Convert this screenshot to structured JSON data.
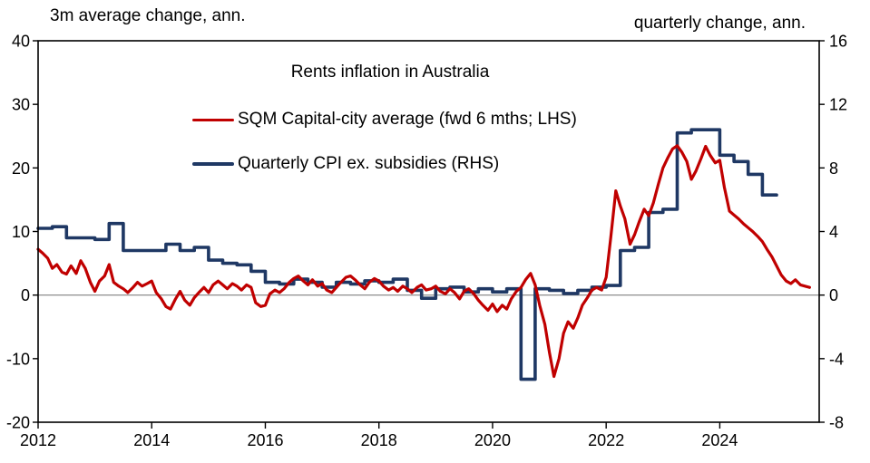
{
  "chart_data": {
    "type": "line",
    "title": "Rents inflation in Australia",
    "left_axis": {
      "title": "3m average change, ann.",
      "min": -20,
      "max": 40,
      "ticks": [
        40,
        30,
        20,
        10,
        0,
        -10,
        -20
      ]
    },
    "right_axis": {
      "title": "quarterly change, ann.",
      "min": -8,
      "max": 16,
      "ticks": [
        16,
        12,
        8,
        4,
        0,
        -4,
        -8
      ]
    },
    "x_axis": {
      "min": 2012,
      "max": 2025.75,
      "tick_positions": [
        2012,
        2014,
        2016,
        2018,
        2020,
        2022,
        2024
      ],
      "tick_labels": [
        "2012",
        "2014",
        "2016",
        "2018",
        "2020",
        "2022",
        "2024"
      ]
    },
    "zero_line": true,
    "grid": false,
    "legend_position": "top-center",
    "series": [
      {
        "name": "SQM Capital-city average (fwd 6 mths; LHS)",
        "axis": "left",
        "color": "#c00000",
        "width": 3.2,
        "style": "linear",
        "points": [
          [
            2012.0,
            7.2
          ],
          [
            2012.08,
            6.6
          ],
          [
            2012.17,
            5.8
          ],
          [
            2012.25,
            4.2
          ],
          [
            2012.33,
            4.8
          ],
          [
            2012.42,
            3.6
          ],
          [
            2012.5,
            3.3
          ],
          [
            2012.58,
            4.6
          ],
          [
            2012.67,
            3.4
          ],
          [
            2012.75,
            5.4
          ],
          [
            2012.83,
            4.2
          ],
          [
            2012.92,
            2.0
          ],
          [
            2013.0,
            0.6
          ],
          [
            2013.08,
            2.2
          ],
          [
            2013.17,
            3.0
          ],
          [
            2013.25,
            4.8
          ],
          [
            2013.33,
            2.0
          ],
          [
            2013.42,
            1.4
          ],
          [
            2013.5,
            1.0
          ],
          [
            2013.58,
            0.4
          ],
          [
            2013.67,
            1.2
          ],
          [
            2013.75,
            2.0
          ],
          [
            2013.83,
            1.4
          ],
          [
            2013.92,
            1.8
          ],
          [
            2014.0,
            2.2
          ],
          [
            2014.08,
            0.4
          ],
          [
            2014.17,
            -0.6
          ],
          [
            2014.25,
            -1.8
          ],
          [
            2014.33,
            -2.2
          ],
          [
            2014.42,
            -0.6
          ],
          [
            2014.5,
            0.6
          ],
          [
            2014.58,
            -0.8
          ],
          [
            2014.67,
            -1.6
          ],
          [
            2014.75,
            -0.4
          ],
          [
            2014.83,
            0.4
          ],
          [
            2014.92,
            1.2
          ],
          [
            2015.0,
            0.4
          ],
          [
            2015.08,
            1.6
          ],
          [
            2015.17,
            2.2
          ],
          [
            2015.25,
            1.6
          ],
          [
            2015.33,
            1.0
          ],
          [
            2015.42,
            1.8
          ],
          [
            2015.5,
            1.4
          ],
          [
            2015.58,
            0.8
          ],
          [
            2015.67,
            1.6
          ],
          [
            2015.75,
            1.2
          ],
          [
            2015.83,
            -1.2
          ],
          [
            2015.92,
            -1.8
          ],
          [
            2016.0,
            -1.6
          ],
          [
            2016.08,
            0.2
          ],
          [
            2016.17,
            0.8
          ],
          [
            2016.25,
            0.4
          ],
          [
            2016.33,
            1.0
          ],
          [
            2016.42,
            2.0
          ],
          [
            2016.5,
            2.6
          ],
          [
            2016.58,
            3.0
          ],
          [
            2016.67,
            2.2
          ],
          [
            2016.75,
            1.6
          ],
          [
            2016.83,
            2.4
          ],
          [
            2016.92,
            1.4
          ],
          [
            2017.0,
            1.8
          ],
          [
            2017.08,
            0.8
          ],
          [
            2017.17,
            0.4
          ],
          [
            2017.25,
            1.2
          ],
          [
            2017.33,
            2.0
          ],
          [
            2017.42,
            2.8
          ],
          [
            2017.5,
            3.0
          ],
          [
            2017.58,
            2.4
          ],
          [
            2017.67,
            1.6
          ],
          [
            2017.75,
            1.0
          ],
          [
            2017.83,
            2.0
          ],
          [
            2017.92,
            2.6
          ],
          [
            2018.0,
            2.2
          ],
          [
            2018.08,
            1.4
          ],
          [
            2018.17,
            0.8
          ],
          [
            2018.25,
            1.2
          ],
          [
            2018.33,
            0.6
          ],
          [
            2018.42,
            1.4
          ],
          [
            2018.5,
            1.0
          ],
          [
            2018.58,
            0.4
          ],
          [
            2018.67,
            1.2
          ],
          [
            2018.75,
            1.6
          ],
          [
            2018.83,
            0.8
          ],
          [
            2018.92,
            1.0
          ],
          [
            2019.0,
            1.4
          ],
          [
            2019.08,
            0.6
          ],
          [
            2019.17,
            0.2
          ],
          [
            2019.25,
            1.0
          ],
          [
            2019.33,
            0.4
          ],
          [
            2019.42,
            -0.6
          ],
          [
            2019.5,
            0.6
          ],
          [
            2019.58,
            1.0
          ],
          [
            2019.67,
            0.2
          ],
          [
            2019.75,
            -0.8
          ],
          [
            2019.83,
            -1.6
          ],
          [
            2019.92,
            -2.4
          ],
          [
            2020.0,
            -1.4
          ],
          [
            2020.08,
            -2.6
          ],
          [
            2020.17,
            -1.6
          ],
          [
            2020.25,
            -2.2
          ],
          [
            2020.33,
            -0.6
          ],
          [
            2020.42,
            0.6
          ],
          [
            2020.5,
            1.2
          ],
          [
            2020.58,
            2.4
          ],
          [
            2020.67,
            3.4
          ],
          [
            2020.75,
            1.6
          ],
          [
            2020.83,
            -1.6
          ],
          [
            2020.92,
            -4.6
          ],
          [
            2021.0,
            -9.0
          ],
          [
            2021.08,
            -12.8
          ],
          [
            2021.17,
            -10.0
          ],
          [
            2021.25,
            -6.0
          ],
          [
            2021.33,
            -4.2
          ],
          [
            2021.42,
            -5.2
          ],
          [
            2021.5,
            -3.6
          ],
          [
            2021.58,
            -1.6
          ],
          [
            2021.67,
            -0.4
          ],
          [
            2021.75,
            0.8
          ],
          [
            2021.83,
            1.2
          ],
          [
            2021.92,
            0.8
          ],
          [
            2022.0,
            2.8
          ],
          [
            2022.08,
            9.0
          ],
          [
            2022.17,
            16.4
          ],
          [
            2022.25,
            14.0
          ],
          [
            2022.33,
            12.0
          ],
          [
            2022.42,
            8.0
          ],
          [
            2022.5,
            9.5
          ],
          [
            2022.58,
            11.5
          ],
          [
            2022.67,
            13.5
          ],
          [
            2022.75,
            12.5
          ],
          [
            2022.83,
            14.5
          ],
          [
            2022.92,
            17.5
          ],
          [
            2023.0,
            20.0
          ],
          [
            2023.08,
            21.5
          ],
          [
            2023.17,
            23.0
          ],
          [
            2023.25,
            23.5
          ],
          [
            2023.33,
            22.5
          ],
          [
            2023.42,
            21.0
          ],
          [
            2023.5,
            18.2
          ],
          [
            2023.58,
            19.5
          ],
          [
            2023.67,
            21.5
          ],
          [
            2023.75,
            23.4
          ],
          [
            2023.83,
            22.0
          ],
          [
            2023.92,
            20.8
          ],
          [
            2024.0,
            21.2
          ],
          [
            2024.08,
            17.0
          ],
          [
            2024.17,
            13.2
          ],
          [
            2024.25,
            12.6
          ],
          [
            2024.33,
            12.0
          ],
          [
            2024.42,
            11.2
          ],
          [
            2024.5,
            10.6
          ],
          [
            2024.58,
            10.0
          ],
          [
            2024.67,
            9.2
          ],
          [
            2024.75,
            8.4
          ],
          [
            2024.83,
            7.2
          ],
          [
            2024.92,
            6.0
          ],
          [
            2025.0,
            4.6
          ],
          [
            2025.08,
            3.2
          ],
          [
            2025.17,
            2.2
          ],
          [
            2025.25,
            1.8
          ],
          [
            2025.33,
            2.4
          ],
          [
            2025.42,
            1.6
          ],
          [
            2025.5,
            1.4
          ],
          [
            2025.58,
            1.2
          ]
        ]
      },
      {
        "name": "Quarterly CPI ex. subsidies (RHS)",
        "axis": "right",
        "color": "#1f3864",
        "width": 3.6,
        "style": "step",
        "points": [
          [
            2012.0,
            4.2
          ],
          [
            2012.25,
            4.3
          ],
          [
            2012.5,
            3.6
          ],
          [
            2012.75,
            3.6
          ],
          [
            2013.0,
            3.5
          ],
          [
            2013.25,
            4.5
          ],
          [
            2013.5,
            2.8
          ],
          [
            2013.75,
            2.8
          ],
          [
            2014.0,
            2.8
          ],
          [
            2014.25,
            3.2
          ],
          [
            2014.5,
            2.8
          ],
          [
            2014.75,
            3.0
          ],
          [
            2015.0,
            2.2
          ],
          [
            2015.25,
            2.0
          ],
          [
            2015.5,
            1.9
          ],
          [
            2015.75,
            1.5
          ],
          [
            2016.0,
            0.8
          ],
          [
            2016.25,
            0.7
          ],
          [
            2016.5,
            1.0
          ],
          [
            2016.75,
            0.8
          ],
          [
            2017.0,
            0.5
          ],
          [
            2017.25,
            0.8
          ],
          [
            2017.5,
            0.7
          ],
          [
            2017.75,
            0.9
          ],
          [
            2018.0,
            0.8
          ],
          [
            2018.25,
            1.0
          ],
          [
            2018.5,
            0.3
          ],
          [
            2018.75,
            -0.2
          ],
          [
            2019.0,
            0.4
          ],
          [
            2019.25,
            0.5
          ],
          [
            2019.5,
            0.2
          ],
          [
            2019.75,
            0.4
          ],
          [
            2020.0,
            0.2
          ],
          [
            2020.25,
            0.4
          ],
          [
            2020.5,
            -5.3
          ],
          [
            2020.75,
            0.4
          ],
          [
            2021.0,
            0.3
          ],
          [
            2021.25,
            0.1
          ],
          [
            2021.5,
            0.3
          ],
          [
            2021.75,
            0.5
          ],
          [
            2022.0,
            0.6
          ],
          [
            2022.25,
            2.8
          ],
          [
            2022.5,
            3.0
          ],
          [
            2022.75,
            5.2
          ],
          [
            2023.0,
            5.4
          ],
          [
            2023.25,
            10.2
          ],
          [
            2023.5,
            10.4
          ],
          [
            2023.75,
            10.4
          ],
          [
            2024.0,
            8.8
          ],
          [
            2024.25,
            8.4
          ],
          [
            2024.5,
            7.6
          ],
          [
            2024.75,
            6.3
          ]
        ]
      }
    ]
  }
}
